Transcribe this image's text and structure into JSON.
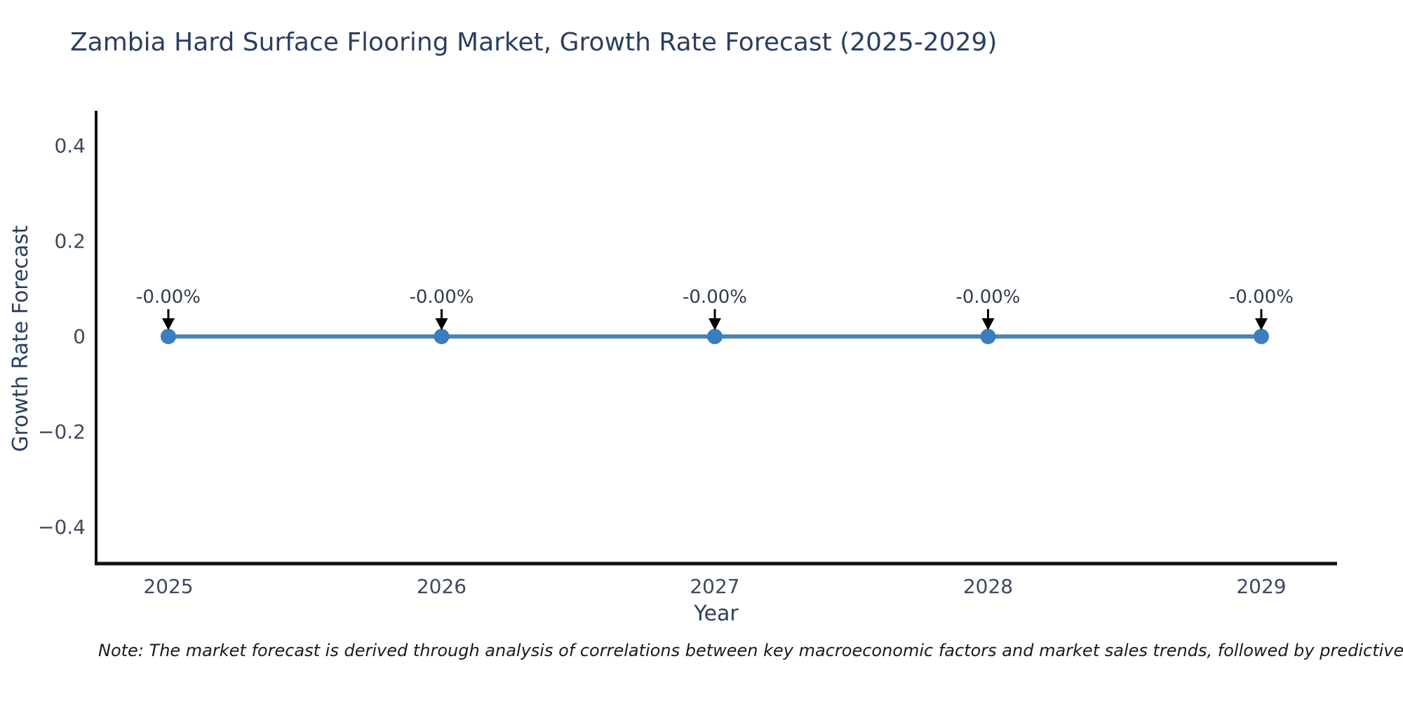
{
  "page": {
    "background": "#ffffff"
  },
  "note": {
    "text": "Note: The market forecast is derived through analysis of correlations between key macroeconomic factors and market sales trends, followed by predictive modeling to project future sal"
  },
  "chart_data": {
    "type": "line",
    "title": "Zambia Hard Surface Flooring Market, Growth Rate Forecast (2025-2029)",
    "xlabel": "Year",
    "ylabel": "Growth Rate Forecast",
    "x": [
      "2025",
      "2026",
      "2027",
      "2028",
      "2029"
    ],
    "series": [
      {
        "name": "Growth Rate Forecast",
        "values": [
          0,
          0,
          0,
          0,
          0
        ],
        "point_labels": [
          "-0.00%",
          "-0.00%",
          "-0.00%",
          "-0.00%",
          "-0.00%"
        ]
      }
    ],
    "yticks": {
      "values": [
        0.4,
        0.2,
        0,
        -0.2,
        -0.4
      ],
      "labels": [
        "0.4",
        "0.2",
        "0",
        "−0.2",
        "−0.4"
      ]
    },
    "ylim": [
      -0.47,
      0.47
    ],
    "grid": false,
    "legend": "none",
    "marker": "circle",
    "annotation_arrows": true,
    "colors": {
      "line": "#4c86b2",
      "marker": "#3a7ebf",
      "spine": "#111111",
      "tick_label": "#3b4a5f",
      "annotation_text": "#333d47",
      "arrow": "#000000",
      "title_text": "#2a3f5f"
    }
  }
}
